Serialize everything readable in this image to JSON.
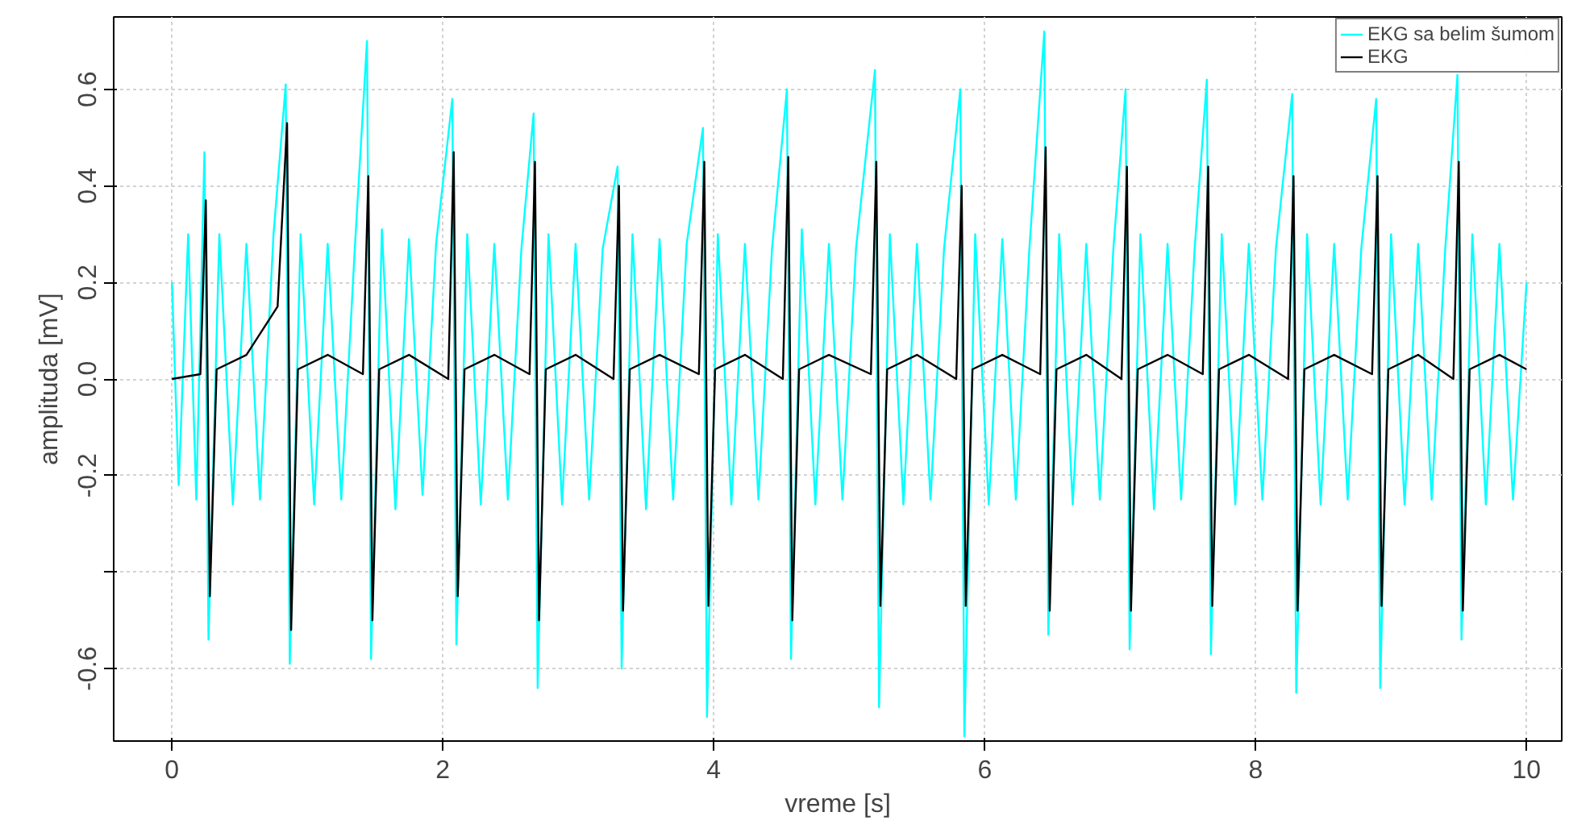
{
  "chart_data": {
    "type": "line",
    "xlabel": "vreme [s]",
    "ylabel": "amplituda [mV]",
    "xlim": [
      -0.43,
      10.26
    ],
    "ylim": [
      -0.75,
      0.75
    ],
    "xticks": [
      0,
      2,
      4,
      6,
      8,
      10
    ],
    "yticks": [
      -0.6,
      {
        "value": -0.4,
        "label": null
      },
      -0.2,
      {
        "value": 0,
        "label": "0.0"
      },
      0.2,
      0.4,
      0.6
    ],
    "grid": true,
    "legend": "top right",
    "line_style": "solid",
    "marker": "none",
    "series": [
      {
        "name": "EKG sa belim šumom",
        "color": "#00ffff",
        "x": [
          0,
          0.05,
          0.12,
          0.18,
          0.24,
          0.27,
          0.35,
          0.45,
          0.55,
          0.65,
          0.75,
          0.84,
          0.87,
          0.95,
          1.05,
          1.15,
          1.25,
          1.35,
          1.44,
          1.47,
          1.55,
          1.65,
          1.75,
          1.85,
          1.95,
          2.07,
          2.1,
          2.18,
          2.28,
          2.38,
          2.48,
          2.58,
          2.67,
          2.7,
          2.78,
          2.88,
          2.98,
          3.08,
          3.18,
          3.29,
          3.32,
          3.4,
          3.5,
          3.6,
          3.7,
          3.8,
          3.92,
          3.95,
          4.03,
          4.13,
          4.23,
          4.33,
          4.43,
          4.54,
          4.57,
          4.65,
          4.75,
          4.85,
          4.95,
          5.05,
          5.19,
          5.22,
          5.3,
          5.4,
          5.5,
          5.6,
          5.7,
          5.82,
          5.85,
          5.93,
          6.03,
          6.13,
          6.23,
          6.33,
          6.44,
          6.47,
          6.55,
          6.65,
          6.75,
          6.85,
          6.95,
          7.04,
          7.07,
          7.15,
          7.25,
          7.35,
          7.45,
          7.55,
          7.64,
          7.67,
          7.75,
          7.85,
          7.95,
          8.05,
          8.15,
          8.27,
          8.3,
          8.38,
          8.48,
          8.58,
          8.68,
          8.78,
          8.89,
          8.92,
          9.0,
          9.1,
          9.2,
          9.3,
          9.4,
          9.49,
          9.52,
          9.6,
          9.7,
          9.8,
          9.9,
          10
        ],
        "values": [
          0.2,
          -0.22,
          0.3,
          -0.25,
          0.47,
          -0.54,
          0.3,
          -0.26,
          0.28,
          -0.25,
          0.3,
          0.61,
          -0.59,
          0.3,
          -0.26,
          0.28,
          -0.25,
          0.27,
          0.7,
          -0.58,
          0.31,
          -0.27,
          0.29,
          -0.24,
          0.28,
          0.58,
          -0.55,
          0.3,
          -0.26,
          0.28,
          -0.25,
          0.27,
          0.55,
          -0.64,
          0.3,
          -0.26,
          0.28,
          -0.25,
          0.27,
          0.44,
          -0.6,
          0.3,
          -0.27,
          0.29,
          -0.25,
          0.28,
          0.52,
          -0.7,
          0.3,
          -0.26,
          0.28,
          -0.25,
          0.27,
          0.6,
          -0.58,
          0.31,
          -0.26,
          0.28,
          -0.25,
          0.27,
          0.64,
          -0.68,
          0.3,
          -0.26,
          0.28,
          -0.25,
          0.27,
          0.6,
          -0.74,
          0.3,
          -0.26,
          0.29,
          -0.25,
          0.27,
          0.72,
          -0.53,
          0.3,
          -0.26,
          0.28,
          -0.25,
          0.27,
          0.6,
          -0.56,
          0.3,
          -0.27,
          0.28,
          -0.25,
          0.27,
          0.62,
          -0.57,
          0.3,
          -0.26,
          0.28,
          -0.25,
          0.27,
          0.59,
          -0.65,
          0.3,
          -0.26,
          0.28,
          -0.25,
          0.27,
          0.58,
          -0.64,
          0.3,
          -0.26,
          0.28,
          -0.25,
          0.27,
          0.63,
          -0.54,
          0.3,
          -0.26,
          0.28,
          -0.25,
          0.2
        ]
      },
      {
        "name": "EKG",
        "color": "#000000",
        "x": [
          0,
          0.21,
          0.25,
          0.28,
          0.33,
          0.55,
          0.78,
          0.85,
          0.88,
          0.93,
          1.15,
          1.41,
          1.45,
          1.48,
          1.53,
          1.75,
          2.04,
          2.08,
          2.11,
          2.16,
          2.38,
          2.64,
          2.68,
          2.71,
          2.76,
          2.98,
          3.26,
          3.3,
          3.33,
          3.38,
          3.6,
          3.89,
          3.93,
          3.96,
          4.01,
          4.23,
          4.51,
          4.55,
          4.58,
          4.63,
          4.85,
          5.16,
          5.2,
          5.23,
          5.28,
          5.5,
          5.79,
          5.83,
          5.86,
          5.91,
          6.13,
          6.41,
          6.45,
          6.48,
          6.53,
          6.75,
          7.01,
          7.05,
          7.08,
          7.13,
          7.35,
          7.61,
          7.65,
          7.68,
          7.73,
          7.95,
          8.24,
          8.28,
          8.31,
          8.36,
          8.58,
          8.86,
          8.9,
          8.93,
          8.98,
          9.2,
          9.46,
          9.5,
          9.53,
          9.58,
          9.8,
          10
        ],
        "values": [
          0.0,
          0.01,
          0.37,
          -0.45,
          0.02,
          0.05,
          0.15,
          0.53,
          -0.52,
          0.02,
          0.05,
          0.01,
          0.42,
          -0.5,
          0.02,
          0.05,
          0.0,
          0.47,
          -0.45,
          0.02,
          0.05,
          0.01,
          0.45,
          -0.5,
          0.02,
          0.05,
          0.0,
          0.4,
          -0.48,
          0.02,
          0.05,
          0.01,
          0.45,
          -0.47,
          0.02,
          0.05,
          0.0,
          0.46,
          -0.5,
          0.02,
          0.05,
          0.01,
          0.45,
          -0.47,
          0.02,
          0.05,
          0.0,
          0.4,
          -0.47,
          0.02,
          0.05,
          0.01,
          0.48,
          -0.48,
          0.02,
          0.05,
          0.0,
          0.44,
          -0.48,
          0.02,
          0.05,
          0.01,
          0.44,
          -0.47,
          0.02,
          0.05,
          0.0,
          0.42,
          -0.48,
          0.02,
          0.05,
          0.01,
          0.42,
          -0.47,
          0.02,
          0.05,
          0.0,
          0.45,
          -0.48,
          0.02,
          0.05,
          0.02
        ]
      }
    ]
  }
}
